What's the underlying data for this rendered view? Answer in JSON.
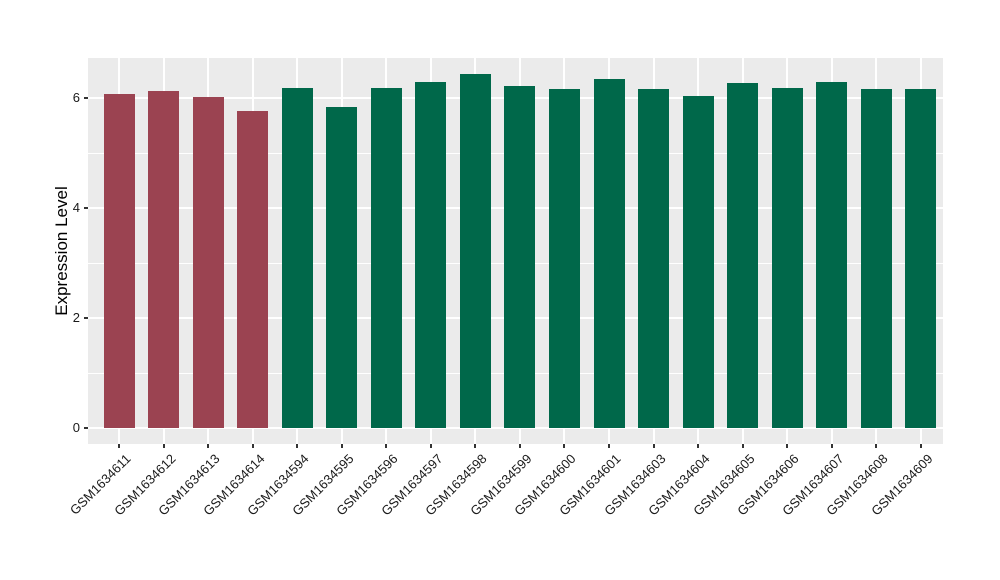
{
  "figure": {
    "background_color": "#FFFFFF",
    "panel_background_color": "#EBEBEB",
    "gridline_color": "#FFFFFF",
    "tick_color": "#333333",
    "axis_text_color": "#1A1A1A"
  },
  "chart_data": {
    "type": "bar",
    "title": "",
    "xlabel": "",
    "ylabel": "Expression Level",
    "categories": [
      "GSM1634611",
      "GSM1634612",
      "GSM1634613",
      "GSM1634614",
      "GSM1634594",
      "GSM1634595",
      "GSM1634596",
      "GSM1634597",
      "GSM1634598",
      "GSM1634599",
      "GSM1634600",
      "GSM1634601",
      "GSM1634603",
      "GSM1634604",
      "GSM1634605",
      "GSM1634606",
      "GSM1634607",
      "GSM1634608",
      "GSM1634609"
    ],
    "values": [
      6.08,
      6.13,
      6.02,
      5.77,
      6.18,
      5.83,
      6.19,
      6.29,
      6.44,
      6.21,
      6.16,
      6.35,
      6.17,
      6.04,
      6.27,
      6.18,
      6.3,
      6.16,
      6.16
    ],
    "bar_colors": [
      "#9B4351",
      "#9B4351",
      "#9B4351",
      "#9B4351",
      "#00684A",
      "#00684A",
      "#00684A",
      "#00684A",
      "#00684A",
      "#00684A",
      "#00684A",
      "#00684A",
      "#00684A",
      "#00684A",
      "#00684A",
      "#00684A",
      "#00684A",
      "#00684A",
      "#00684A"
    ],
    "group_colors": {
      "first_group": "#9B4351",
      "second_group": "#00684A"
    },
    "ylim": [
      0,
      6.73
    ],
    "yticks_major": [
      0,
      2,
      4,
      6
    ],
    "yticks_minor": [
      1,
      3,
      5
    ],
    "grid": true,
    "legend": "none",
    "x_label_rotation_deg": 45
  }
}
